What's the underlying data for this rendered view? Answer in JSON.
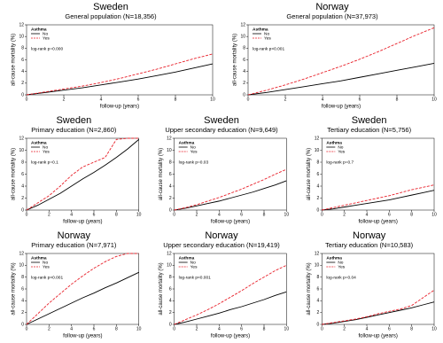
{
  "chart_data": [
    {
      "type": "line",
      "title": "Sweden",
      "subtitle": "General population (N=18,356)",
      "xlabel": "follow-up (years)",
      "ylabel": "all-cause mortality (%)",
      "legend_title": "Asthma",
      "annotation": "log-rank p=0.000",
      "x": [
        0,
        1,
        2,
        3,
        4,
        5,
        6,
        7,
        8,
        9,
        10
      ],
      "xlim": [
        0,
        10
      ],
      "xticks": [
        0,
        2,
        4,
        6,
        8,
        10
      ],
      "ylim": [
        0,
        12
      ],
      "yticks": [
        0,
        2,
        4,
        6,
        8,
        10,
        12
      ],
      "series": [
        {
          "name": "No",
          "color": "#000000",
          "dash": false,
          "values": [
            0,
            0.4,
            0.8,
            1.2,
            1.7,
            2.2,
            2.7,
            3.3,
            3.9,
            4.6,
            5.3
          ]
        },
        {
          "name": "Yes",
          "color": "#e8202a",
          "dash": true,
          "values": [
            0,
            0.5,
            1.0,
            1.5,
            2.1,
            2.8,
            3.6,
            4.4,
            5.3,
            6.2,
            7.0
          ]
        }
      ]
    },
    {
      "type": "line",
      "title": "Norway",
      "subtitle": "General population (N=37,973)",
      "xlabel": "follow-up (years)",
      "ylabel": "all-cause mortality (%)",
      "legend_title": "Asthma",
      "annotation": "log-rank p<0.001",
      "x": [
        0,
        1,
        2,
        3,
        4,
        5,
        6,
        7,
        8,
        9,
        10
      ],
      "xlim": [
        0,
        10
      ],
      "xticks": [
        0,
        2,
        4,
        6,
        8,
        10
      ],
      "ylim": [
        0,
        12
      ],
      "yticks": [
        0,
        2,
        4,
        6,
        8,
        10,
        12
      ],
      "series": [
        {
          "name": "No",
          "color": "#000000",
          "dash": false,
          "values": [
            0,
            0.4,
            0.9,
            1.4,
            1.9,
            2.4,
            3.0,
            3.6,
            4.2,
            4.8,
            5.4
          ]
        },
        {
          "name": "Yes",
          "color": "#e8202a",
          "dash": true,
          "values": [
            0,
            0.8,
            1.7,
            2.7,
            3.8,
            4.9,
            6.1,
            7.4,
            8.8,
            10.2,
            11.5
          ]
        }
      ]
    },
    {
      "type": "line",
      "title": "Sweden",
      "subtitle": "Primary education (N=2,860)",
      "xlabel": "follow-up (years)",
      "ylabel": "all-cause mortality (%)",
      "legend_title": "Asthma",
      "annotation": "log-rank p=0.1",
      "x": [
        0,
        1,
        2,
        3,
        4,
        5,
        6,
        7,
        8,
        9,
        10
      ],
      "xlim": [
        0,
        10
      ],
      "xticks": [
        0,
        2,
        4,
        6,
        8,
        10
      ],
      "ylim": [
        0,
        12
      ],
      "yticks": [
        0,
        2,
        4,
        6,
        8,
        10,
        12
      ],
      "series": [
        {
          "name": "No",
          "color": "#000000",
          "dash": false,
          "values": [
            0,
            0.8,
            1.8,
            2.8,
            4.0,
            5.2,
            6.3,
            7.5,
            8.8,
            10.2,
            11.8
          ]
        },
        {
          "name": "Yes",
          "color": "#e8202a",
          "dash": true,
          "values": [
            0,
            1.2,
            2.4,
            4.0,
            5.8,
            7.2,
            8.0,
            8.8,
            11.8,
            12.0,
            12.0
          ]
        }
      ]
    },
    {
      "type": "line",
      "title": "Sweden",
      "subtitle": "Upper secondary education (N=9,649)",
      "xlabel": "follow-up (years)",
      "ylabel": "all-cause mortality (%)",
      "legend_title": "Asthma",
      "annotation": "log-rank p=0.03",
      "x": [
        0,
        1,
        2,
        3,
        4,
        5,
        6,
        7,
        8,
        9,
        10
      ],
      "xlim": [
        0,
        10
      ],
      "xticks": [
        0,
        2,
        4,
        6,
        8,
        10
      ],
      "ylim": [
        0,
        12
      ],
      "yticks": [
        0,
        2,
        4,
        6,
        8,
        10,
        12
      ],
      "series": [
        {
          "name": "No",
          "color": "#000000",
          "dash": false,
          "values": [
            0,
            0.3,
            0.7,
            1.1,
            1.5,
            2.0,
            2.5,
            3.0,
            3.6,
            4.2,
            4.9
          ]
        },
        {
          "name": "Yes",
          "color": "#e8202a",
          "dash": true,
          "values": [
            0,
            0.4,
            0.9,
            1.5,
            2.1,
            2.8,
            3.5,
            4.3,
            5.1,
            6.0,
            6.8
          ]
        }
      ]
    },
    {
      "type": "line",
      "title": "Sweden",
      "subtitle": "Tertiary education (N=5,756)",
      "xlabel": "follow-up (years)",
      "ylabel": "all-cause mortality (%)",
      "legend_title": "Asthma",
      "annotation": "log-rank p=0.7",
      "x": [
        0,
        1,
        2,
        3,
        4,
        5,
        6,
        7,
        8,
        9,
        10
      ],
      "xlim": [
        0,
        10
      ],
      "xticks": [
        0,
        2,
        4,
        6,
        8,
        10
      ],
      "ylim": [
        0,
        12
      ],
      "yticks": [
        0,
        2,
        4,
        6,
        8,
        10,
        12
      ],
      "series": [
        {
          "name": "No",
          "color": "#000000",
          "dash": false,
          "values": [
            0,
            0.2,
            0.5,
            0.8,
            1.1,
            1.4,
            1.7,
            2.1,
            2.5,
            2.9,
            3.3
          ]
        },
        {
          "name": "Yes",
          "color": "#e8202a",
          "dash": true,
          "values": [
            0,
            0.4,
            0.8,
            1.2,
            1.6,
            2.0,
            2.4,
            2.9,
            3.4,
            3.8,
            4.2
          ]
        }
      ]
    },
    {
      "type": "line",
      "title": "Norway",
      "subtitle": "Primary education (N=7,971)",
      "xlabel": "follow-up (years)",
      "ylabel": "all-cause mortality (%)",
      "legend_title": "Asthma",
      "annotation": "log-rank p<0.001",
      "x": [
        0,
        1,
        2,
        3,
        4,
        5,
        6,
        7,
        8,
        9,
        10
      ],
      "xlim": [
        0,
        10
      ],
      "xticks": [
        0,
        2,
        4,
        6,
        8,
        10
      ],
      "ylim": [
        0,
        12
      ],
      "yticks": [
        0,
        2,
        4,
        6,
        8,
        10,
        12
      ],
      "series": [
        {
          "name": "No",
          "color": "#000000",
          "dash": false,
          "values": [
            0,
            0.9,
            1.8,
            2.7,
            3.6,
            4.5,
            5.3,
            6.2,
            7.0,
            7.9,
            8.8
          ]
        },
        {
          "name": "Yes",
          "color": "#e8202a",
          "dash": true,
          "values": [
            0,
            1.8,
            3.6,
            5.2,
            6.8,
            8.2,
            9.5,
            10.6,
            11.5,
            12.0,
            12.0
          ]
        }
      ]
    },
    {
      "type": "line",
      "title": "Norway",
      "subtitle": "Upper secondary education (N=19,419)",
      "xlabel": "follow-up (years)",
      "ylabel": "all-cause mortality (%)",
      "legend_title": "Asthma",
      "annotation": "log-rank p<0.001",
      "x": [
        0,
        1,
        2,
        3,
        4,
        5,
        6,
        7,
        8,
        9,
        10
      ],
      "xlim": [
        0,
        10
      ],
      "xticks": [
        0,
        2,
        4,
        6,
        8,
        10
      ],
      "ylim": [
        0,
        12
      ],
      "yticks": [
        0,
        2,
        4,
        6,
        8,
        10,
        12
      ],
      "series": [
        {
          "name": "No",
          "color": "#000000",
          "dash": false,
          "values": [
            0,
            0.4,
            0.9,
            1.4,
            1.9,
            2.5,
            3.0,
            3.6,
            4.2,
            4.9,
            5.5
          ]
        },
        {
          "name": "Yes",
          "color": "#e8202a",
          "dash": true,
          "values": [
            0,
            0.8,
            1.6,
            2.5,
            3.5,
            4.6,
            5.7,
            6.9,
            8.0,
            9.1,
            10.0
          ]
        }
      ]
    },
    {
      "type": "line",
      "title": "Norway",
      "subtitle": "Tertiary education (N=10,583)",
      "xlabel": "follow-up (years)",
      "ylabel": "all-cause mortality (%)",
      "legend_title": "Asthma",
      "annotation": "log-rank p=0.04",
      "x": [
        0,
        1,
        2,
        3,
        4,
        5,
        6,
        7,
        8,
        9,
        10
      ],
      "xlim": [
        0,
        10
      ],
      "xticks": [
        0,
        2,
        4,
        6,
        8,
        10
      ],
      "ylim": [
        0,
        12
      ],
      "yticks": [
        0,
        2,
        4,
        6,
        8,
        10,
        12
      ],
      "series": [
        {
          "name": "No",
          "color": "#000000",
          "dash": false,
          "values": [
            0,
            0.2,
            0.5,
            0.8,
            1.2,
            1.6,
            2.0,
            2.4,
            2.8,
            3.3,
            3.8
          ]
        },
        {
          "name": "Yes",
          "color": "#e8202a",
          "dash": true,
          "values": [
            0,
            0.3,
            0.6,
            0.9,
            1.3,
            1.8,
            2.2,
            2.6,
            3.2,
            4.5,
            5.8
          ]
        }
      ]
    }
  ]
}
